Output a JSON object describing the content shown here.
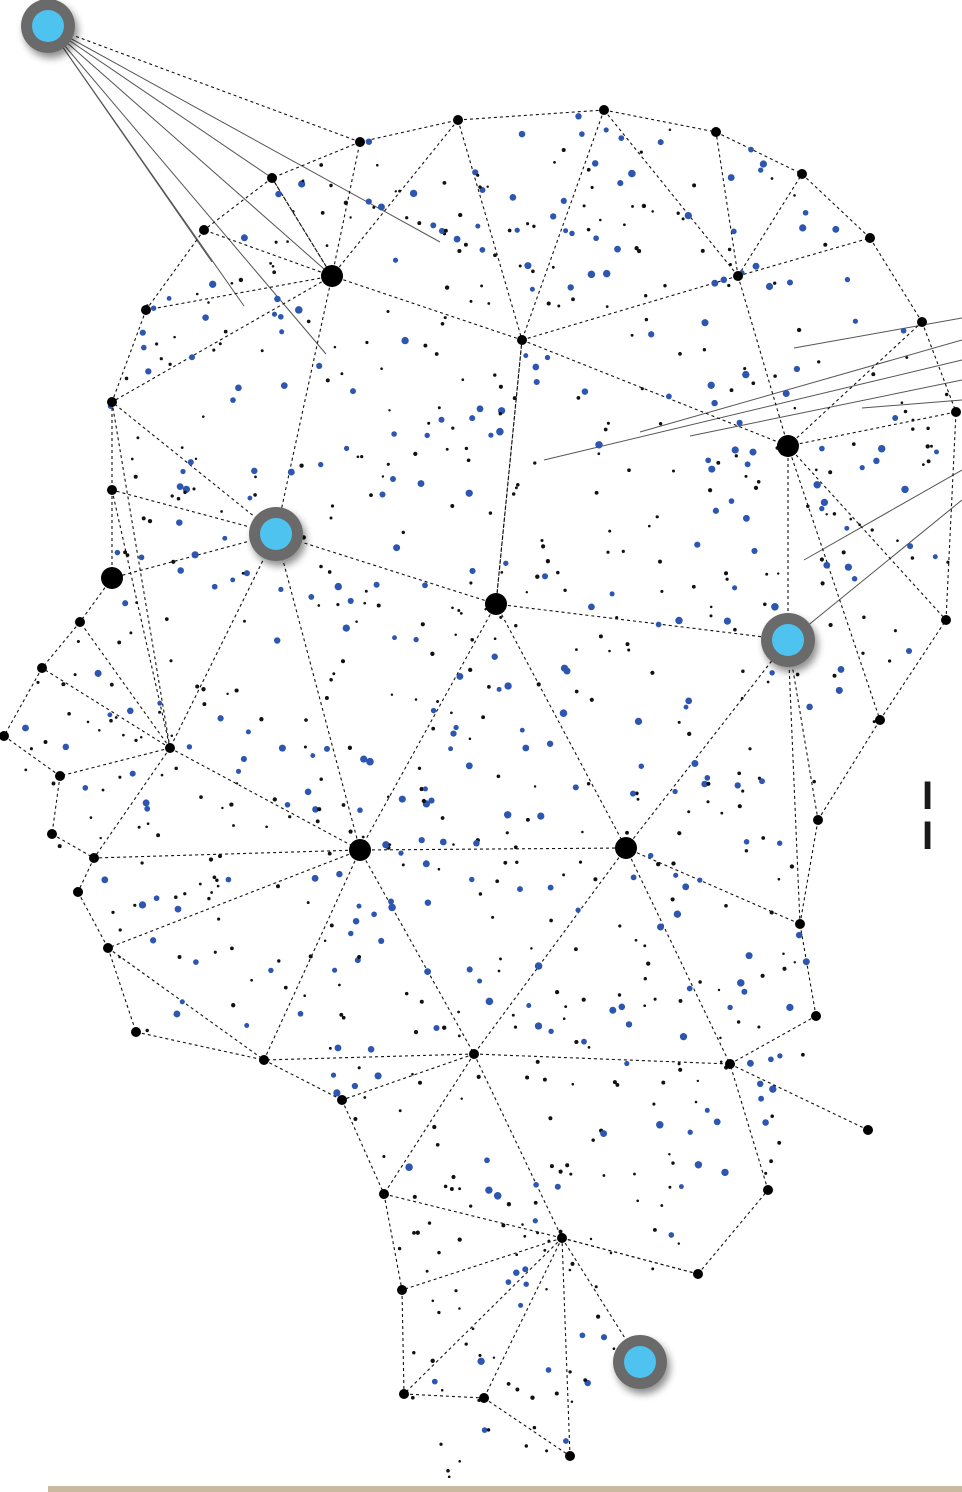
{
  "artwork": {
    "subject": "network-head-profile",
    "colors": {
      "line": "#111111",
      "dot_dark": "#111111",
      "dot_blue": "#2c56b0",
      "glow_ring": "#6b6b6b",
      "glow_core": "#4fc3f0",
      "bottom_bar": "#c9b9a0"
    }
  },
  "edge_text": "I I"
}
